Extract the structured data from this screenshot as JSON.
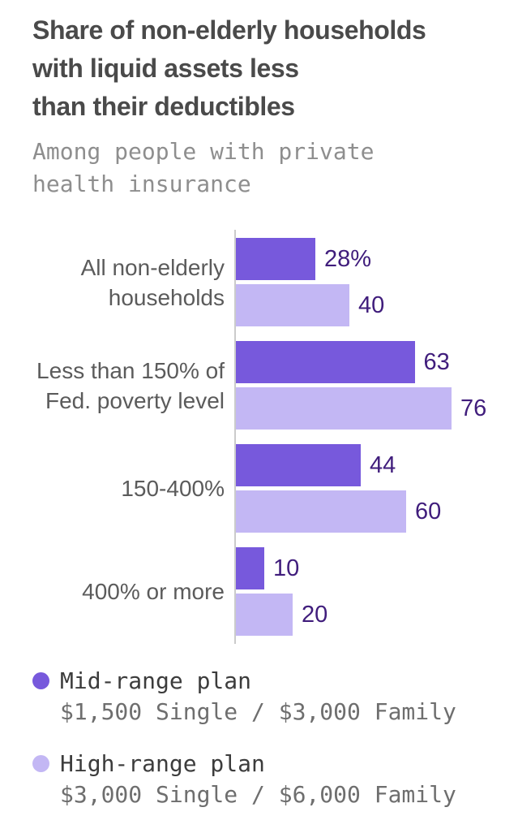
{
  "header": {
    "title_lines": [
      "Share of non-elderly households",
      "with liquid assets less",
      "than their deductibles"
    ],
    "subtitle_lines": [
      "Among people with private",
      "health insurance"
    ]
  },
  "chart_data": {
    "type": "bar",
    "orientation": "horizontal",
    "title": "Share of non-elderly households with liquid assets less than their deductibles",
    "subtitle": "Among people with private health insurance",
    "categories": [
      "All non-elderly households",
      "Less than 150% of Fed. poverty level",
      "150-400%",
      "400% or more"
    ],
    "category_label_lines": [
      [
        "All non-elderly",
        "households"
      ],
      [
        "Less than 150% of",
        "Fed. poverty level"
      ],
      [
        "150-400%"
      ],
      [
        "400% or more"
      ]
    ],
    "series": [
      {
        "name": "Mid-range plan",
        "color": "#7759dc",
        "values": [
          28,
          63,
          44,
          10
        ],
        "value_labels": [
          "28%",
          "63",
          "44",
          "10"
        ]
      },
      {
        "name": "High-range plan",
        "color": "#c3b7f4",
        "values": [
          40,
          76,
          60,
          20
        ],
        "value_labels": [
          "40",
          "76",
          "60",
          "20"
        ]
      }
    ],
    "xlim": [
      0,
      100
    ],
    "grid": false,
    "axis_color": "#cbcbcb",
    "value_label_color": "#401d7c",
    "legend_position": "bottom"
  },
  "legend": {
    "items": [
      {
        "label": "Mid-range plan",
        "sublabel": "$1,500 Single / $3,000 Family",
        "color": "#7759dc"
      },
      {
        "label": "High-range plan",
        "sublabel": "$3,000 Single / $6,000 Family",
        "color": "#c3b7f4"
      }
    ]
  }
}
